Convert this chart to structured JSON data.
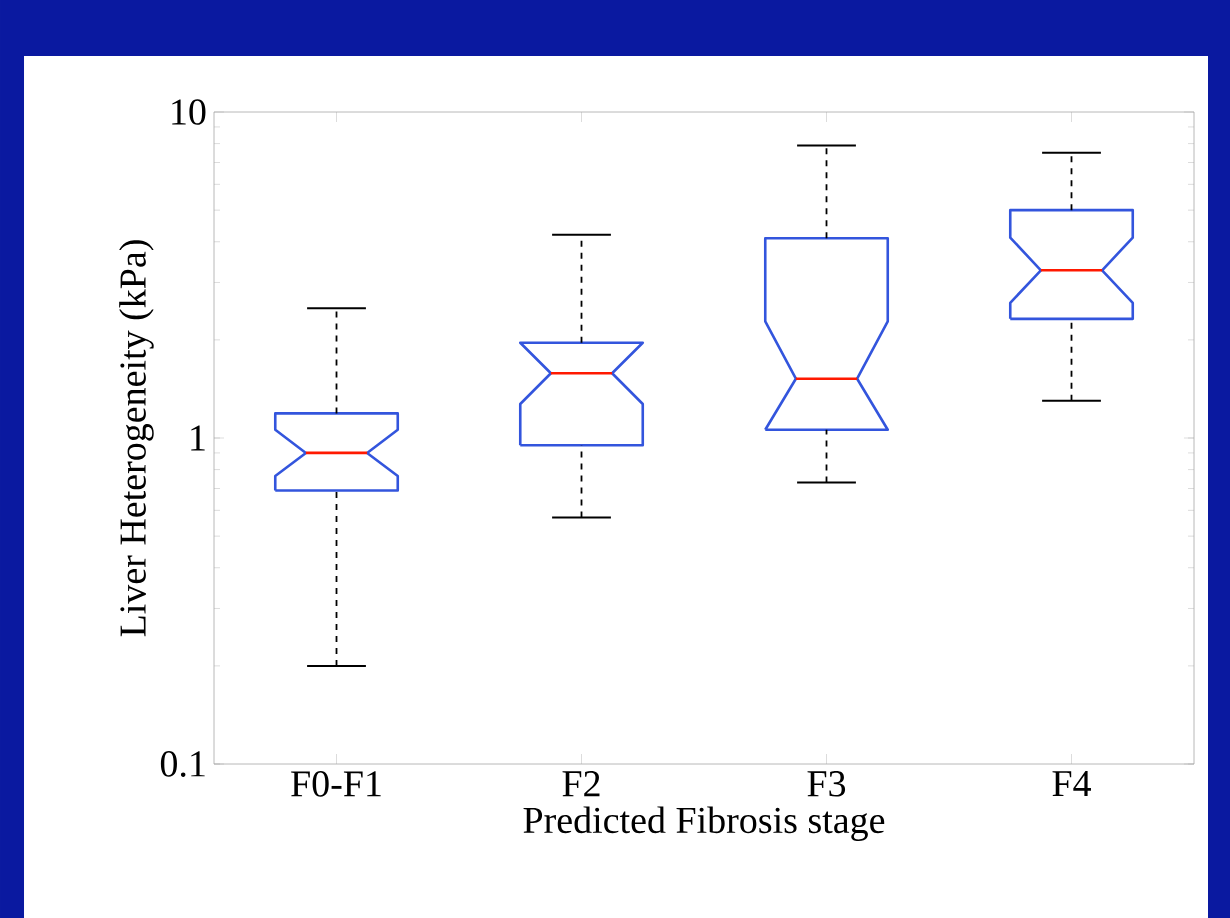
{
  "chart_data": {
    "type": "box",
    "xlabel": "Predicted Fibrosis stage",
    "ylabel": "Liver Heterogeneity (kPa)",
    "categories": [
      "F0-F1",
      "F2",
      "F3",
      "F4"
    ],
    "log": "y",
    "ylim": [
      0.1,
      10
    ],
    "yticks": [
      0.1,
      1,
      10
    ],
    "grid": false,
    "series": [
      {
        "color": "#3355dd",
        "boxes": [
          {
            "low": 0.2,
            "q1": 0.69,
            "median": 0.9,
            "q3": 1.19,
            "high": 2.5
          },
          {
            "low": 0.57,
            "q1": 0.95,
            "median": 1.58,
            "q3": 1.96,
            "high": 4.2
          },
          {
            "low": 0.73,
            "q1": 1.06,
            "median": 1.52,
            "q3": 4.1,
            "high": 7.9
          },
          {
            "low": 1.3,
            "q1": 2.32,
            "median": 3.27,
            "q3": 5.0,
            "high": 7.5
          }
        ]
      }
    ]
  }
}
